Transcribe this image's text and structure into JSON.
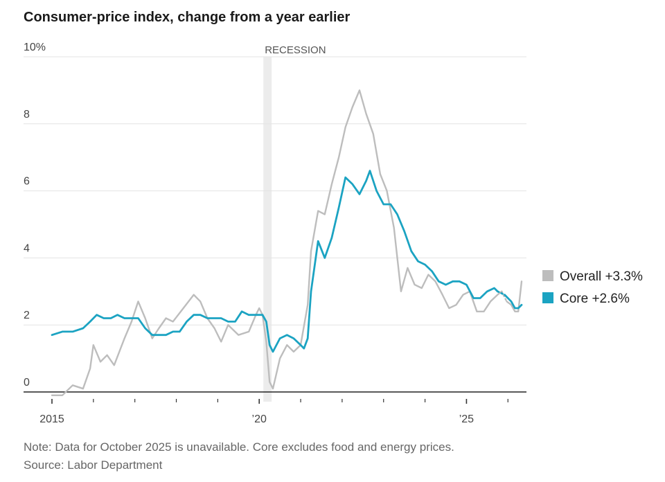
{
  "title": "Consumer-price index, change from a year earlier",
  "note": "Note: Data for October 2025 is unavailable. Core excludes food and energy prices.",
  "source": "Source: Labor Department",
  "chart_data": {
    "type": "line",
    "title": "Consumer-price index, change from a year earlier",
    "y_unit": "%",
    "ylim": [
      0,
      10
    ],
    "y_ticks": [
      0,
      2,
      4,
      6,
      8,
      10
    ],
    "y_tick_labels": [
      "0",
      "2",
      "4",
      "6",
      "8",
      "10%"
    ],
    "x_tick_labels": [
      {
        "x": 2015.0,
        "label": "2015"
      },
      {
        "x": 2020.0,
        "label": "’20"
      },
      {
        "x": 2025.0,
        "label": "’25"
      }
    ],
    "grid": true,
    "legend_position": "right",
    "recession": {
      "label": "RECESSION",
      "start": 2020.1,
      "end": 2020.3
    },
    "gap_note": "October 2025 unavailable",
    "series": [
      {
        "name": "Overall",
        "legend_label": "Overall +3.3%",
        "color": "#bdbdbd",
        "points": [
          [
            2015.0,
            -0.1
          ],
          [
            2015.25,
            -0.1
          ],
          [
            2015.5,
            0.2
          ],
          [
            2015.75,
            0.1
          ],
          [
            2015.92,
            0.7
          ],
          [
            2016.0,
            1.4
          ],
          [
            2016.17,
            0.9
          ],
          [
            2016.33,
            1.1
          ],
          [
            2016.5,
            0.8
          ],
          [
            2016.75,
            1.6
          ],
          [
            2016.92,
            2.1
          ],
          [
            2017.08,
            2.7
          ],
          [
            2017.25,
            2.2
          ],
          [
            2017.42,
            1.6
          ],
          [
            2017.58,
            1.9
          ],
          [
            2017.75,
            2.2
          ],
          [
            2017.92,
            2.1
          ],
          [
            2018.17,
            2.5
          ],
          [
            2018.42,
            2.9
          ],
          [
            2018.58,
            2.7
          ],
          [
            2018.75,
            2.2
          ],
          [
            2018.92,
            1.9
          ],
          [
            2019.08,
            1.5
          ],
          [
            2019.25,
            2.0
          ],
          [
            2019.5,
            1.7
          ],
          [
            2019.75,
            1.8
          ],
          [
            2019.92,
            2.3
          ],
          [
            2020.0,
            2.5
          ],
          [
            2020.08,
            2.3
          ],
          [
            2020.17,
            1.5
          ],
          [
            2020.25,
            0.3
          ],
          [
            2020.33,
            0.1
          ],
          [
            2020.5,
            1.0
          ],
          [
            2020.67,
            1.4
          ],
          [
            2020.83,
            1.2
          ],
          [
            2021.0,
            1.4
          ],
          [
            2021.17,
            2.6
          ],
          [
            2021.25,
            4.2
          ],
          [
            2021.42,
            5.4
          ],
          [
            2021.58,
            5.3
          ],
          [
            2021.75,
            6.2
          ],
          [
            2021.92,
            7.0
          ],
          [
            2022.08,
            7.9
          ],
          [
            2022.25,
            8.5
          ],
          [
            2022.42,
            9.0
          ],
          [
            2022.58,
            8.3
          ],
          [
            2022.75,
            7.7
          ],
          [
            2022.92,
            6.5
          ],
          [
            2023.08,
            6.0
          ],
          [
            2023.25,
            4.9
          ],
          [
            2023.42,
            3.0
          ],
          [
            2023.58,
            3.7
          ],
          [
            2023.75,
            3.2
          ],
          [
            2023.92,
            3.1
          ],
          [
            2024.08,
            3.5
          ],
          [
            2024.25,
            3.3
          ],
          [
            2024.42,
            2.9
          ],
          [
            2024.58,
            2.5
          ],
          [
            2024.75,
            2.6
          ],
          [
            2024.92,
            2.9
          ],
          [
            2025.08,
            3.0
          ],
          [
            2025.25,
            2.4
          ],
          [
            2025.42,
            2.4
          ],
          [
            2025.58,
            2.7
          ],
          [
            2025.75,
            2.9
          ],
          [
            2025.85,
            3.0
          ],
          null,
          [
            2025.97,
            2.7
          ],
          [
            2026.08,
            2.6
          ],
          [
            2026.17,
            2.4
          ],
          [
            2026.25,
            2.4
          ],
          [
            2026.33,
            3.3
          ]
        ]
      },
      {
        "name": "Core",
        "legend_label": "Core +2.6%",
        "color": "#1ba3c2",
        "points": [
          [
            2015.0,
            1.7
          ],
          [
            2015.25,
            1.8
          ],
          [
            2015.5,
            1.8
          ],
          [
            2015.75,
            1.9
          ],
          [
            2015.92,
            2.1
          ],
          [
            2016.08,
            2.3
          ],
          [
            2016.25,
            2.2
          ],
          [
            2016.42,
            2.2
          ],
          [
            2016.58,
            2.3
          ],
          [
            2016.75,
            2.2
          ],
          [
            2016.92,
            2.2
          ],
          [
            2017.08,
            2.2
          ],
          [
            2017.25,
            1.9
          ],
          [
            2017.42,
            1.7
          ],
          [
            2017.58,
            1.7
          ],
          [
            2017.75,
            1.7
          ],
          [
            2017.92,
            1.8
          ],
          [
            2018.08,
            1.8
          ],
          [
            2018.25,
            2.1
          ],
          [
            2018.42,
            2.3
          ],
          [
            2018.58,
            2.3
          ],
          [
            2018.75,
            2.2
          ],
          [
            2018.92,
            2.2
          ],
          [
            2019.08,
            2.2
          ],
          [
            2019.25,
            2.1
          ],
          [
            2019.42,
            2.1
          ],
          [
            2019.58,
            2.4
          ],
          [
            2019.75,
            2.3
          ],
          [
            2019.92,
            2.3
          ],
          [
            2020.08,
            2.3
          ],
          [
            2020.17,
            2.1
          ],
          [
            2020.25,
            1.4
          ],
          [
            2020.33,
            1.2
          ],
          [
            2020.5,
            1.6
          ],
          [
            2020.67,
            1.7
          ],
          [
            2020.83,
            1.6
          ],
          [
            2021.0,
            1.4
          ],
          [
            2021.08,
            1.3
          ],
          [
            2021.17,
            1.6
          ],
          [
            2021.25,
            3.0
          ],
          [
            2021.42,
            4.5
          ],
          [
            2021.58,
            4.0
          ],
          [
            2021.75,
            4.6
          ],
          [
            2021.92,
            5.5
          ],
          [
            2022.08,
            6.4
          ],
          [
            2022.25,
            6.2
          ],
          [
            2022.42,
            5.9
          ],
          [
            2022.58,
            6.3
          ],
          [
            2022.67,
            6.6
          ],
          [
            2022.83,
            6.0
          ],
          [
            2023.0,
            5.6
          ],
          [
            2023.17,
            5.6
          ],
          [
            2023.33,
            5.3
          ],
          [
            2023.5,
            4.8
          ],
          [
            2023.67,
            4.2
          ],
          [
            2023.83,
            3.9
          ],
          [
            2024.0,
            3.8
          ],
          [
            2024.17,
            3.6
          ],
          [
            2024.33,
            3.3
          ],
          [
            2024.5,
            3.2
          ],
          [
            2024.67,
            3.3
          ],
          [
            2024.83,
            3.3
          ],
          [
            2025.0,
            3.2
          ],
          [
            2025.17,
            2.8
          ],
          [
            2025.33,
            2.8
          ],
          [
            2025.5,
            3.0
          ],
          [
            2025.67,
            3.1
          ],
          [
            2025.75,
            3.0
          ],
          null,
          [
            2025.92,
            2.9
          ],
          [
            2026.08,
            2.7
          ],
          [
            2026.17,
            2.5
          ],
          [
            2026.25,
            2.5
          ],
          [
            2026.33,
            2.6
          ]
        ]
      }
    ]
  }
}
